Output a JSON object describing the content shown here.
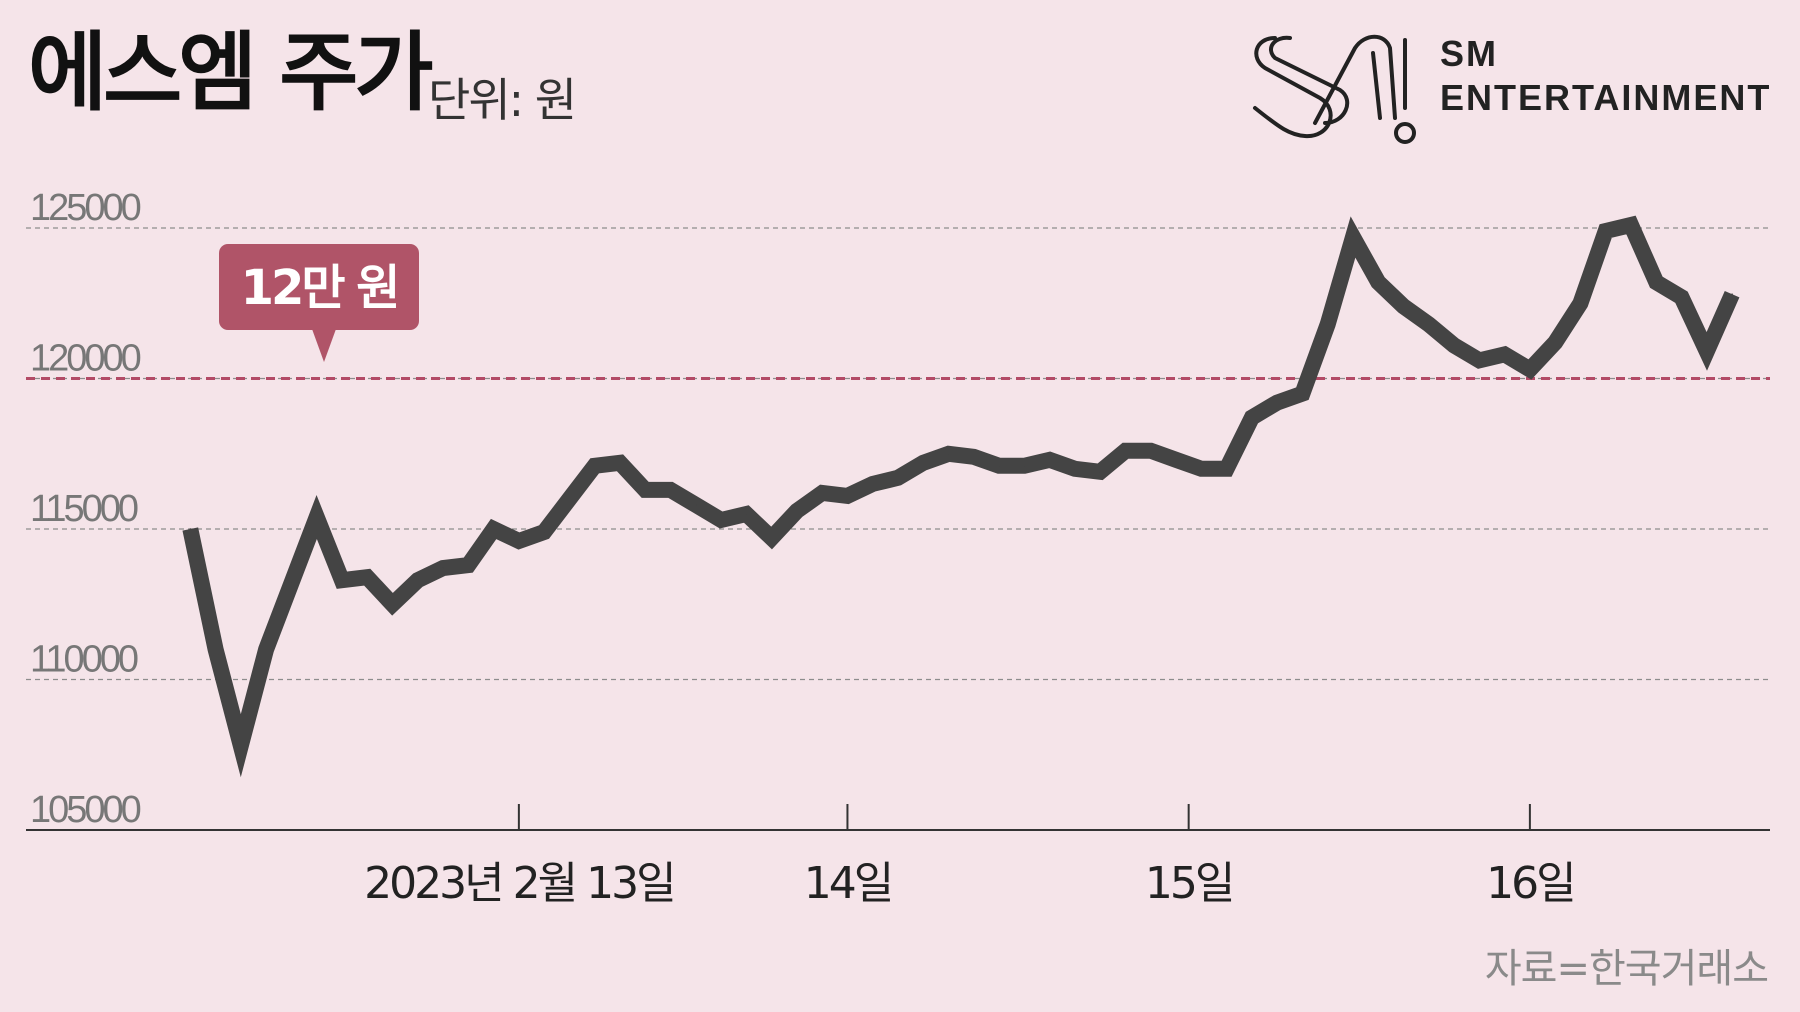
{
  "header": {
    "title": "에스엠 주가",
    "unit": "단위: 원"
  },
  "logo": {
    "line1": "SM",
    "line2": "ENTERTAINMENT"
  },
  "source": "자료=한국거래소",
  "colors": {
    "background": "#f5e4e9",
    "line": "#444444",
    "reference": "#b34a66",
    "callout": "#b05468"
  },
  "chart_data": {
    "type": "line",
    "title": "에스엠 주가",
    "ylabel": "단위: 원",
    "ylim": [
      105000,
      125000
    ],
    "y_ticks": [
      105000,
      110000,
      115000,
      120000,
      125000
    ],
    "y_tick_labels": [
      "105000",
      "110000",
      "115000",
      "120000",
      "125000"
    ],
    "x_ticks": [
      {
        "label": "2023년 2월 13일",
        "at": 13
      },
      {
        "label": "14일",
        "at": 26
      },
      {
        "label": "15일",
        "at": 39.5
      },
      {
        "label": "16일",
        "at": 53
      }
    ],
    "xlim": [
      -6.5,
      62.5
    ],
    "grid": true,
    "reference_line": {
      "value": 120000,
      "label": "12만 원"
    },
    "series": [
      {
        "values": [
          115000,
          111000,
          107800,
          111000,
          113200,
          115400,
          113300,
          113400,
          112500,
          113300,
          113700,
          113800,
          115000,
          114600,
          114900,
          116000,
          117100,
          117200,
          116300,
          116300,
          115800,
          115300,
          115500,
          114700,
          115600,
          116200,
          116100,
          116500,
          116700,
          117200,
          117500,
          117400,
          117100,
          117100,
          117300,
          117000,
          116900,
          117600,
          117600,
          117300,
          117000,
          117000,
          118700,
          119200,
          119500,
          121800,
          124700,
          123200,
          122400,
          121800,
          121100,
          120600,
          120800,
          120300,
          121200,
          122500,
          124900,
          125100,
          123200,
          122700,
          120900,
          122800
        ]
      }
    ]
  }
}
